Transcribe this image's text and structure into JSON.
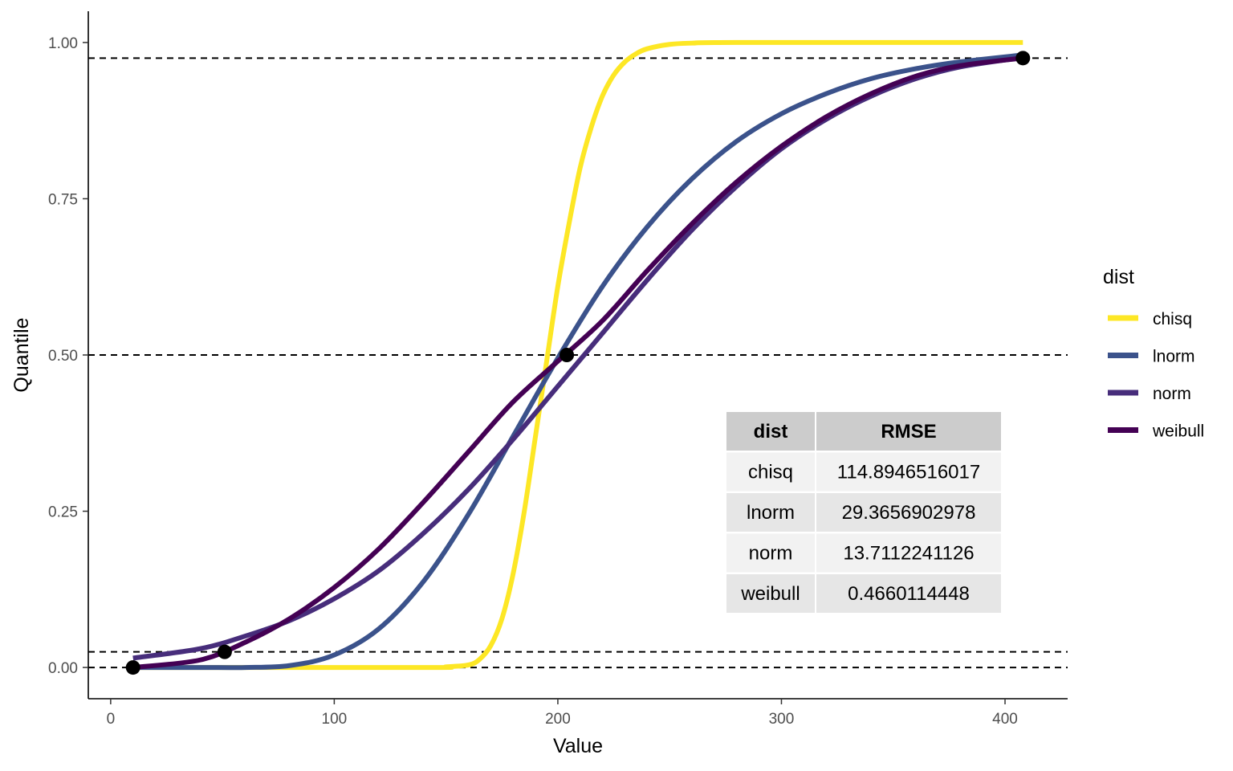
{
  "chart_data": {
    "type": "line",
    "xlabel": "Value",
    "ylabel": "Quantile",
    "xlim": [
      -10,
      428
    ],
    "ylim": [
      -0.05,
      1.05
    ],
    "x_ticks": [
      0,
      100,
      200,
      300,
      400
    ],
    "x_tick_labels": [
      "0",
      "100",
      "200",
      "300",
      "400"
    ],
    "y_ticks": [
      0,
      0.25,
      0.5,
      0.75,
      1.0
    ],
    "y_tick_labels": [
      "0.00",
      "0.25",
      "0.50",
      "0.75",
      "1.00"
    ],
    "grid": false,
    "reference_lines_y": [
      0,
      0.025,
      0.5,
      0.975
    ],
    "legend": {
      "title": "dist",
      "position": "right",
      "entries": [
        "chisq",
        "lnorm",
        "norm",
        "weibull"
      ]
    },
    "series": [
      {
        "name": "chisq",
        "color": "#FDE725",
        "x": [
          10,
          140,
          150,
          160,
          165,
          170,
          175,
          180,
          185,
          190,
          195,
          200,
          205,
          210,
          215,
          220,
          225,
          230,
          235,
          240,
          250,
          260,
          280,
          408
        ],
        "y": [
          0.0,
          0.0,
          0.001,
          0.004,
          0.013,
          0.035,
          0.078,
          0.15,
          0.25,
          0.37,
          0.49,
          0.61,
          0.71,
          0.8,
          0.865,
          0.915,
          0.948,
          0.969,
          0.982,
          0.99,
          0.997,
          0.999,
          1.0,
          1.0
        ]
      },
      {
        "name": "lnorm",
        "color": "#3B528B",
        "x": [
          10,
          40,
          60,
          80,
          100,
          120,
          140,
          160,
          180,
          200,
          220,
          240,
          260,
          280,
          300,
          320,
          340,
          360,
          380,
          408
        ],
        "y": [
          0.0,
          0.0,
          0.0,
          0.003,
          0.02,
          0.062,
          0.138,
          0.245,
          0.37,
          0.495,
          0.61,
          0.705,
          0.782,
          0.842,
          0.886,
          0.918,
          0.942,
          0.958,
          0.969,
          0.98
        ]
      },
      {
        "name": "norm",
        "color": "#472D7B",
        "x": [
          10,
          40,
          60,
          80,
          100,
          120,
          140,
          160,
          180,
          200,
          220,
          240,
          260,
          280,
          300,
          320,
          340,
          360,
          380,
          408
        ],
        "y": [
          0.015,
          0.03,
          0.05,
          0.075,
          0.11,
          0.155,
          0.215,
          0.285,
          0.365,
          0.45,
          0.535,
          0.62,
          0.7,
          0.77,
          0.83,
          0.877,
          0.914,
          0.942,
          0.961,
          0.976
        ]
      },
      {
        "name": "weibull",
        "color": "#440154",
        "x": [
          10,
          40,
          60,
          80,
          100,
          120,
          140,
          160,
          180,
          200,
          220,
          240,
          260,
          280,
          300,
          320,
          340,
          360,
          380,
          408
        ],
        "y": [
          0.0,
          0.012,
          0.04,
          0.078,
          0.128,
          0.19,
          0.265,
          0.345,
          0.425,
          0.49,
          0.555,
          0.635,
          0.71,
          0.777,
          0.834,
          0.881,
          0.918,
          0.946,
          0.963,
          0.975
        ]
      }
    ],
    "points": {
      "x": [
        10,
        51,
        204,
        408
      ],
      "y": [
        0.0,
        0.025,
        0.5,
        0.975
      ]
    },
    "table": {
      "headers": [
        "dist",
        "RMSE"
      ],
      "rows": [
        [
          "chisq",
          "114.8946516017"
        ],
        [
          "lnorm",
          "29.3656902978"
        ],
        [
          "norm",
          "13.7112241126"
        ],
        [
          "weibull",
          "0.4660114448"
        ]
      ]
    }
  }
}
